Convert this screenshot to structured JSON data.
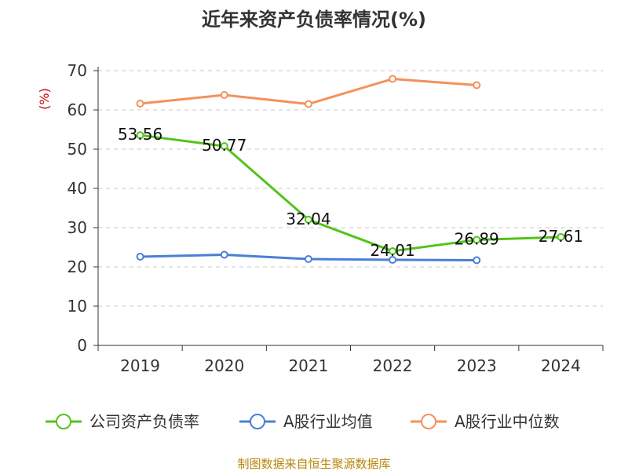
{
  "chart_data": {
    "type": "line",
    "title": "近年来资产负债率情况(%)",
    "ylabel": "(%)",
    "ylim": [
      0,
      70
    ],
    "yticks": [
      0,
      10,
      20,
      30,
      40,
      50,
      60,
      70
    ],
    "categories": [
      "2019",
      "2020",
      "2021",
      "2022",
      "2023",
      "2024"
    ],
    "grid": true,
    "legend_position": "bottom",
    "series": [
      {
        "name": "公司资产负债率",
        "color": "#52c41a",
        "values": [
          53.56,
          50.77,
          32.04,
          24.01,
          26.89,
          27.61
        ],
        "labels": [
          "53.56",
          "50.77",
          "32.04",
          "24.01",
          "26.89",
          "27.61"
        ]
      },
      {
        "name": "A股行业均值",
        "color": "#4a7fd8",
        "values": [
          22.6,
          23.1,
          22.0,
          21.8,
          21.7,
          null
        ]
      },
      {
        "name": "A股行业中位数",
        "color": "#f5905a",
        "values": [
          61.6,
          63.8,
          61.5,
          67.9,
          66.3,
          null
        ]
      }
    ]
  },
  "source": "制图数据来自恒生聚源数据库"
}
